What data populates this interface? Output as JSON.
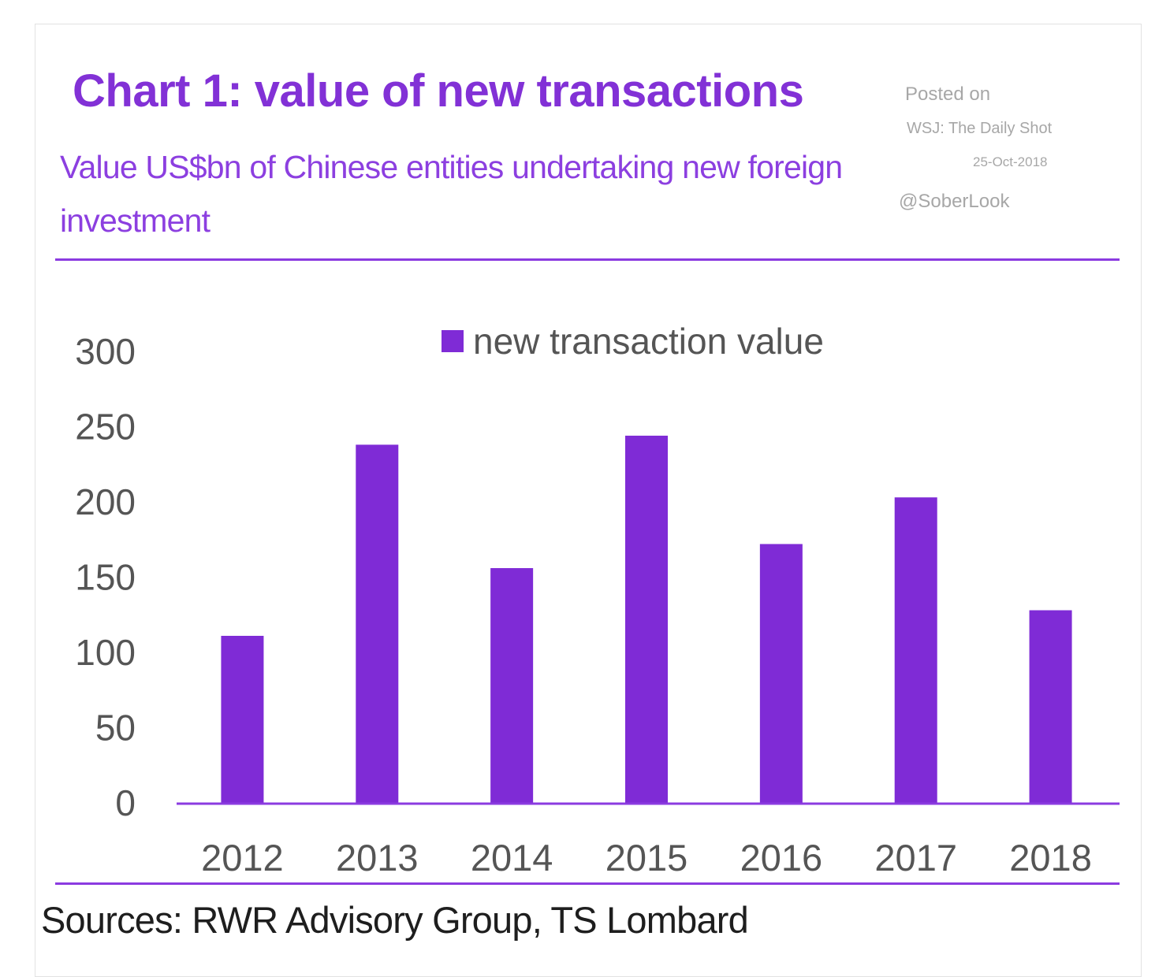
{
  "header": {
    "title": "Chart 1: value of new transactions",
    "subtitle": "Value US$bn of Chinese entities undertaking new foreign investment"
  },
  "watermark": {
    "line1": "Posted on",
    "line2": "WSJ: The Daily Shot",
    "line3": "25-Oct-2018",
    "line4": "@SoberLook"
  },
  "footer": {
    "source": "Sources: RWR Advisory Group, TS Lombard"
  },
  "colors": {
    "accent": "#8231d6",
    "bar": "#7f2bd6",
    "axis_text": "#555555"
  },
  "chart_data": {
    "type": "bar",
    "categories": [
      "2012",
      "2013",
      "2014",
      "2015",
      "2016",
      "2017",
      "2018"
    ],
    "series": [
      {
        "name": "new transaction value",
        "values": [
          111,
          238,
          156,
          244,
          172,
          203,
          128
        ]
      }
    ],
    "ylim": [
      0,
      300
    ],
    "yticks": [
      0,
      50,
      100,
      150,
      200,
      250,
      300
    ],
    "legend": "top-center",
    "grid": false
  }
}
